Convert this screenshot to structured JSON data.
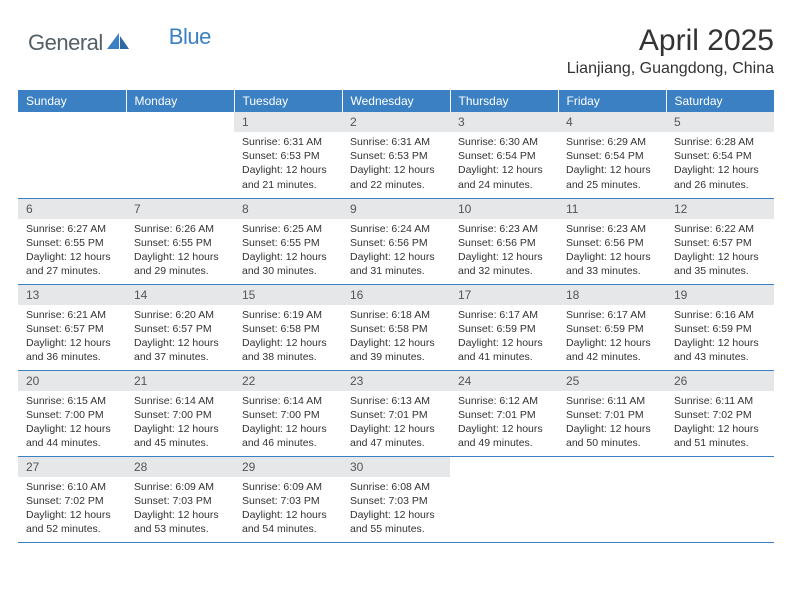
{
  "logo": {
    "general": "General",
    "blue": "Blue"
  },
  "title": "April 2025",
  "location": "Lianjiang, Guangdong, China",
  "colors": {
    "header_bg": "#3a80c3",
    "header_text": "#ffffff",
    "daynum_bg": "#e6e7e8",
    "border": "#3a80c3",
    "text": "#333333",
    "logo_gray": "#555f66",
    "logo_blue": "#3a80c3"
  },
  "day_headers": [
    "Sunday",
    "Monday",
    "Tuesday",
    "Wednesday",
    "Thursday",
    "Friday",
    "Saturday"
  ],
  "weeks": [
    [
      null,
      null,
      {
        "n": "1",
        "sunrise": "6:31 AM",
        "sunset": "6:53 PM",
        "daylight": "12 hours and 21 minutes."
      },
      {
        "n": "2",
        "sunrise": "6:31 AM",
        "sunset": "6:53 PM",
        "daylight": "12 hours and 22 minutes."
      },
      {
        "n": "3",
        "sunrise": "6:30 AM",
        "sunset": "6:54 PM",
        "daylight": "12 hours and 24 minutes."
      },
      {
        "n": "4",
        "sunrise": "6:29 AM",
        "sunset": "6:54 PM",
        "daylight": "12 hours and 25 minutes."
      },
      {
        "n": "5",
        "sunrise": "6:28 AM",
        "sunset": "6:54 PM",
        "daylight": "12 hours and 26 minutes."
      }
    ],
    [
      {
        "n": "6",
        "sunrise": "6:27 AM",
        "sunset": "6:55 PM",
        "daylight": "12 hours and 27 minutes."
      },
      {
        "n": "7",
        "sunrise": "6:26 AM",
        "sunset": "6:55 PM",
        "daylight": "12 hours and 29 minutes."
      },
      {
        "n": "8",
        "sunrise": "6:25 AM",
        "sunset": "6:55 PM",
        "daylight": "12 hours and 30 minutes."
      },
      {
        "n": "9",
        "sunrise": "6:24 AM",
        "sunset": "6:56 PM",
        "daylight": "12 hours and 31 minutes."
      },
      {
        "n": "10",
        "sunrise": "6:23 AM",
        "sunset": "6:56 PM",
        "daylight": "12 hours and 32 minutes."
      },
      {
        "n": "11",
        "sunrise": "6:23 AM",
        "sunset": "6:56 PM",
        "daylight": "12 hours and 33 minutes."
      },
      {
        "n": "12",
        "sunrise": "6:22 AM",
        "sunset": "6:57 PM",
        "daylight": "12 hours and 35 minutes."
      }
    ],
    [
      {
        "n": "13",
        "sunrise": "6:21 AM",
        "sunset": "6:57 PM",
        "daylight": "12 hours and 36 minutes."
      },
      {
        "n": "14",
        "sunrise": "6:20 AM",
        "sunset": "6:57 PM",
        "daylight": "12 hours and 37 minutes."
      },
      {
        "n": "15",
        "sunrise": "6:19 AM",
        "sunset": "6:58 PM",
        "daylight": "12 hours and 38 minutes."
      },
      {
        "n": "16",
        "sunrise": "6:18 AM",
        "sunset": "6:58 PM",
        "daylight": "12 hours and 39 minutes."
      },
      {
        "n": "17",
        "sunrise": "6:17 AM",
        "sunset": "6:59 PM",
        "daylight": "12 hours and 41 minutes."
      },
      {
        "n": "18",
        "sunrise": "6:17 AM",
        "sunset": "6:59 PM",
        "daylight": "12 hours and 42 minutes."
      },
      {
        "n": "19",
        "sunrise": "6:16 AM",
        "sunset": "6:59 PM",
        "daylight": "12 hours and 43 minutes."
      }
    ],
    [
      {
        "n": "20",
        "sunrise": "6:15 AM",
        "sunset": "7:00 PM",
        "daylight": "12 hours and 44 minutes."
      },
      {
        "n": "21",
        "sunrise": "6:14 AM",
        "sunset": "7:00 PM",
        "daylight": "12 hours and 45 minutes."
      },
      {
        "n": "22",
        "sunrise": "6:14 AM",
        "sunset": "7:00 PM",
        "daylight": "12 hours and 46 minutes."
      },
      {
        "n": "23",
        "sunrise": "6:13 AM",
        "sunset": "7:01 PM",
        "daylight": "12 hours and 47 minutes."
      },
      {
        "n": "24",
        "sunrise": "6:12 AM",
        "sunset": "7:01 PM",
        "daylight": "12 hours and 49 minutes."
      },
      {
        "n": "25",
        "sunrise": "6:11 AM",
        "sunset": "7:01 PM",
        "daylight": "12 hours and 50 minutes."
      },
      {
        "n": "26",
        "sunrise": "6:11 AM",
        "sunset": "7:02 PM",
        "daylight": "12 hours and 51 minutes."
      }
    ],
    [
      {
        "n": "27",
        "sunrise": "6:10 AM",
        "sunset": "7:02 PM",
        "daylight": "12 hours and 52 minutes."
      },
      {
        "n": "28",
        "sunrise": "6:09 AM",
        "sunset": "7:03 PM",
        "daylight": "12 hours and 53 minutes."
      },
      {
        "n": "29",
        "sunrise": "6:09 AM",
        "sunset": "7:03 PM",
        "daylight": "12 hours and 54 minutes."
      },
      {
        "n": "30",
        "sunrise": "6:08 AM",
        "sunset": "7:03 PM",
        "daylight": "12 hours and 55 minutes."
      },
      null,
      null,
      null
    ]
  ],
  "labels": {
    "sunrise": "Sunrise:",
    "sunset": "Sunset:",
    "daylight": "Daylight:"
  }
}
